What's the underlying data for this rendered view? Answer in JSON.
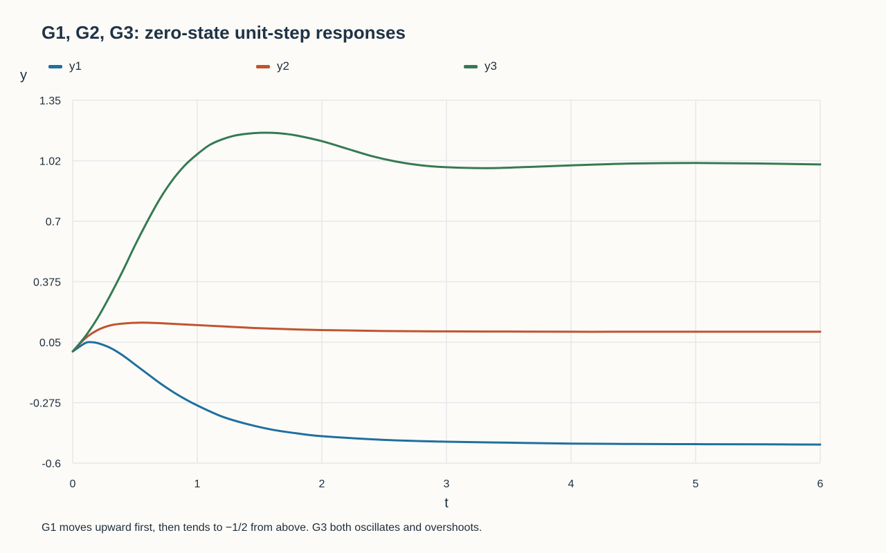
{
  "chart_data": {
    "type": "line",
    "title": "G1, G2, G3: zero-state unit-step responses",
    "xlabel": "t",
    "ylabel": "y",
    "xlim": [
      0,
      6
    ],
    "ylim": [
      -0.6,
      1.35
    ],
    "xticks": [
      "0",
      "1",
      "2",
      "3",
      "4",
      "5",
      "6"
    ],
    "yticks": [
      "1.35",
      "1.02",
      "0.7",
      "0.375",
      "0.05",
      "-0.275",
      "-0.6"
    ],
    "ytick_values": [
      1.35,
      1.025,
      0.7,
      0.375,
      0.05,
      -0.275,
      -0.6
    ],
    "grid": true,
    "legend_position": "top",
    "series": [
      {
        "name": "y1",
        "color": "#1f6f9f",
        "x": [
          0,
          0.1,
          0.15,
          0.2,
          0.3,
          0.4,
          0.5,
          0.6,
          0.7,
          0.8,
          0.9,
          1.0,
          1.2,
          1.4,
          1.6,
          1.8,
          2.0,
          2.5,
          3.0,
          3.5,
          4.0,
          4.5,
          5.0,
          5.5,
          6.0
        ],
        "y": [
          0.0,
          0.045,
          0.05,
          0.045,
          0.02,
          -0.02,
          -0.07,
          -0.12,
          -0.17,
          -0.215,
          -0.255,
          -0.29,
          -0.35,
          -0.39,
          -0.42,
          -0.44,
          -0.455,
          -0.475,
          -0.485,
          -0.49,
          -0.495,
          -0.497,
          -0.498,
          -0.499,
          -0.5
        ]
      },
      {
        "name": "y2",
        "color": "#c0532f",
        "x": [
          0,
          0.1,
          0.2,
          0.3,
          0.4,
          0.55,
          0.7,
          0.9,
          1.2,
          1.5,
          2.0,
          2.5,
          3.0,
          3.5,
          4.0,
          4.5,
          5.0,
          5.5,
          6.0
        ],
        "y": [
          0.0,
          0.07,
          0.115,
          0.14,
          0.15,
          0.155,
          0.152,
          0.145,
          0.135,
          0.125,
          0.115,
          0.11,
          0.108,
          0.107,
          0.106,
          0.106,
          0.106,
          0.106,
          0.106
        ]
      },
      {
        "name": "y3",
        "color": "#357a52",
        "x": [
          0,
          0.1,
          0.2,
          0.3,
          0.4,
          0.5,
          0.6,
          0.7,
          0.8,
          0.9,
          1.0,
          1.1,
          1.2,
          1.3,
          1.4,
          1.5,
          1.6,
          1.7,
          1.8,
          2.0,
          2.2,
          2.4,
          2.6,
          2.8,
          3.0,
          3.3,
          3.6,
          4.0,
          4.5,
          5.0,
          5.5,
          6.0
        ],
        "y": [
          0.0,
          0.08,
          0.18,
          0.3,
          0.43,
          0.57,
          0.7,
          0.82,
          0.92,
          1.0,
          1.06,
          1.11,
          1.14,
          1.16,
          1.17,
          1.175,
          1.175,
          1.17,
          1.16,
          1.13,
          1.09,
          1.05,
          1.02,
          1.0,
          0.99,
          0.985,
          0.99,
          1.0,
          1.01,
          1.013,
          1.01,
          1.005
        ]
      }
    ],
    "footnote": "G1 moves upward first, then tends to −1/2 from above. G3 both oscillates and overshoots."
  }
}
